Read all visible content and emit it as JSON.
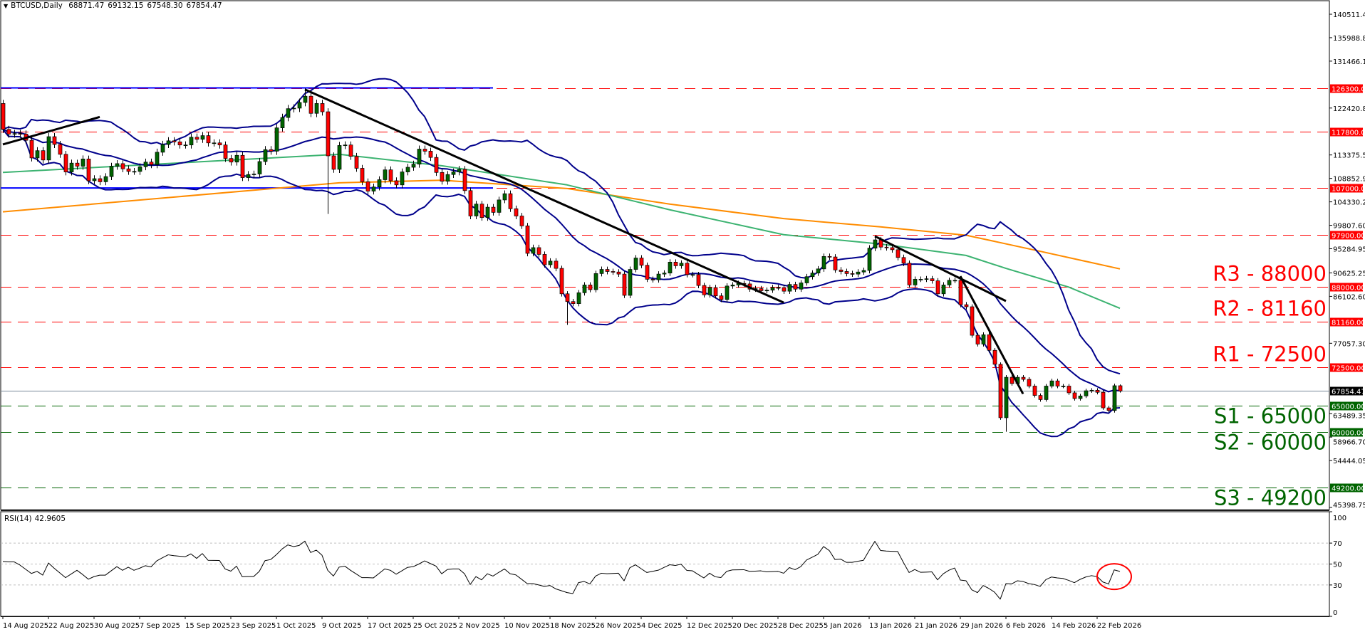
{
  "header": {
    "symbol": "BTCUSD,Daily",
    "open": "68871.47",
    "high": "69132.15",
    "low": "67548.30",
    "close": "67854.47"
  },
  "rsi_panel": {
    "title": "RSI(14)",
    "value": "42.9605",
    "levels": [
      "70",
      "50",
      "30"
    ],
    "scale_labels": [
      "100",
      "70",
      "50",
      "30",
      "0"
    ]
  },
  "colors": {
    "bull": "#006400",
    "bear": "#ff0000",
    "resistance": "#ff0000",
    "support": "#006400",
    "bands": "#00008b",
    "ma_green": "#3cb371",
    "ma_orange": "#ff8c00",
    "range_lines": "#0000ff",
    "trendlines": "#000000",
    "rsi_highlight": "#ff0000"
  },
  "chart_data": {
    "type": "candlestick",
    "title": "BTCUSD,Daily",
    "ylim": [
      44985,
      143256
    ],
    "first_date": "14 Aug 2025",
    "first_open": 123300,
    "close": [
      118300,
      117400,
      117500,
      117400,
      116200,
      112800,
      114200,
      112400,
      116900,
      115400,
      113500,
      110100,
      111800,
      111200,
      112600,
      108400,
      108800,
      108200,
      109200,
      111200,
      111700,
      110700,
      110200,
      110200,
      111100,
      112000,
      111500,
      113900,
      115400,
      116100,
      115900,
      115300,
      115300,
      116800,
      116400,
      117100,
      115700,
      115700,
      115300,
      112700,
      112000,
      113300,
      109000,
      109600,
      109700,
      112100,
      114400,
      114100,
      118600,
      120600,
      122300,
      122400,
      123500,
      124700,
      121400,
      123300,
      121700,
      113200,
      110600,
      115200,
      115300,
      113100,
      110800,
      108200,
      106400,
      107200,
      108600,
      110500,
      108400,
      107600,
      110100,
      111000,
      111600,
      114500,
      114100,
      112900,
      110000,
      108300,
      109600,
      110100,
      110600,
      106500,
      101600,
      103900,
      101300,
      103300,
      102300,
      104700,
      105900,
      103000,
      101600,
      99700,
      94400,
      95500,
      94200,
      92200,
      92900,
      91500,
      86600,
      85100,
      84700,
      86800,
      88300,
      87400,
      90500,
      91300,
      90900,
      90800,
      90400,
      86300,
      91300,
      93500,
      92100,
      89400,
      89300,
      90400,
      90600,
      92700,
      92000,
      92500,
      90300,
      90300,
      88200,
      86400,
      87800,
      86200,
      85500,
      88100,
      88300,
      88600,
      88500,
      87500,
      87600,
      87200,
      87300,
      87800,
      87800,
      87100,
      88400,
      87500,
      88700,
      89900,
      90600,
      91400,
      93800,
      93700,
      91200,
      90900,
      90500,
      90400,
      90800,
      91100,
      95400,
      97000,
      95600,
      95500,
      95100,
      93600,
      92500,
      88300,
      89400,
      89400,
      89500,
      89100,
      86600,
      88300,
      89200,
      89200,
      84500,
      84100,
      78600,
      76900,
      78700,
      75700,
      73000,
      62700,
      70500,
      69300,
      70500,
      70100,
      68800,
      67000,
      66200,
      68800,
      69800,
      68800,
      68800,
      67500,
      66400,
      66900,
      67900,
      68000,
      67600,
      64600,
      64100,
      68871.47,
      67854.47
    ],
    "wick_overrides": {
      "6 Oct 2025": {
        "high": 126200
      },
      "10 Oct 2025": {
        "low": 102000
      },
      "21 Nov 2025": {
        "low": 80600
      },
      "5 Feb 2026": {
        "low": 62300
      },
      "6 Feb 2026": {
        "low": 60000
      },
      "26 Feb 2026": {
        "open": 68871.47,
        "high": 69132.15,
        "low": 67548.3
      }
    },
    "bollinger": {
      "period": 20,
      "deviations": 2
    },
    "ma_green": [
      {
        "date": "14 Aug 2025",
        "value": 110000
      },
      {
        "date": "12 Oct 2025",
        "value": 113500
      },
      {
        "date": "30 Oct 2025",
        "value": 111300
      },
      {
        "date": "21 Nov 2025",
        "value": 107600
      },
      {
        "date": "9 Dec 2025",
        "value": 102800
      },
      {
        "date": "29 Dec 2025",
        "value": 98000
      },
      {
        "date": "15 Jan 2026",
        "value": 96200
      },
      {
        "date": "30 Jan 2026",
        "value": 94000
      },
      {
        "date": "6 Feb 2026",
        "value": 91500
      },
      {
        "date": "17 Feb 2026",
        "value": 87900
      },
      {
        "date": "26 Feb 2026",
        "value": 83800
      }
    ],
    "ma_orange": [
      {
        "date": "14 Aug 2025",
        "value": 102400
      },
      {
        "date": "12 Oct 2025",
        "value": 108000
      },
      {
        "date": "30 Oct 2025",
        "value": 108500
      },
      {
        "date": "21 Nov 2025",
        "value": 106900
      },
      {
        "date": "9 Dec 2025",
        "value": 103900
      },
      {
        "date": "29 Dec 2025",
        "value": 101100
      },
      {
        "date": "15 Jan 2026",
        "value": 99500
      },
      {
        "date": "30 Jan 2026",
        "value": 97900
      },
      {
        "date": "12 Feb 2026",
        "value": 94800
      },
      {
        "date": "26 Feb 2026",
        "value": 91400
      }
    ],
    "trendlines": [
      {
        "from": {
          "date": "14 Aug 2025",
          "value": 115400
        },
        "to": {
          "date": "31 Aug 2025",
          "value": 120700
        }
      },
      {
        "from": {
          "date": "6 Oct 2025",
          "value": 126000
        },
        "to": {
          "date": "29 Dec 2025",
          "value": 84900
        }
      },
      {
        "from": {
          "date": "14 Jan 2026",
          "value": 97700
        },
        "to": {
          "date": "6 Feb 2026",
          "value": 85200
        }
      },
      {
        "from": {
          "date": "29 Jan 2026",
          "value": 90000
        },
        "to": {
          "date": "9 Feb 2026",
          "value": 67300
        }
      }
    ],
    "range_lines": [
      {
        "value": 126300,
        "from": "14 Aug 2025",
        "to": "8 Nov 2025"
      },
      {
        "value": 107000,
        "from": "14 Aug 2025",
        "to": "8 Nov 2025"
      }
    ],
    "levels": [
      {
        "value": 126300,
        "label": "126300.00",
        "kind": "resistance",
        "note": ""
      },
      {
        "value": 117800,
        "label": "117800.00",
        "kind": "resistance",
        "note": ""
      },
      {
        "value": 107000,
        "label": "107000.00",
        "kind": "resistance",
        "note": ""
      },
      {
        "value": 97900,
        "label": "97900.00",
        "kind": "resistance",
        "note": ""
      },
      {
        "value": 88000,
        "label": "88000.00",
        "kind": "resistance",
        "note": "R3 - 88000"
      },
      {
        "value": 81160,
        "label": "81160.00",
        "kind": "resistance",
        "note": "R2 - 81160"
      },
      {
        "value": 72500,
        "label": "72500.00",
        "kind": "resistance",
        "note": "R1 - 72500"
      },
      {
        "value": 65000,
        "label": "65000.00",
        "kind": "support",
        "note": "S1 - 65000"
      },
      {
        "value": 60000,
        "label": "60000.00",
        "kind": "support",
        "note": "S2 - 60000"
      },
      {
        "value": 49200,
        "label": "49200.00",
        "kind": "support",
        "note": "S3 - 49200"
      }
    ],
    "current_price": {
      "value": 67854.47,
      "label": "67854.47"
    },
    "y_ticks": [
      "140511.45",
      "135988.80",
      "131466.15",
      "122420.85",
      "113375.55",
      "108852.90",
      "104330.25",
      "99807.60",
      "95284.95",
      "90625.25",
      "86102.60",
      "77057.30",
      "63489.35",
      "58966.70",
      "54444.05",
      "45398.75"
    ],
    "x_ticks": [
      "14 Aug 2025",
      "22 Aug 2025",
      "30 Aug 2025",
      "7 Sep 2025",
      "15 Sep 2025",
      "23 Sep 2025",
      "1 Oct 2025",
      "9 Oct 2025",
      "17 Oct 2025",
      "25 Oct 2025",
      "2 Nov 2025",
      "10 Nov 2025",
      "18 Nov 2025",
      "26 Nov 2025",
      "4 Dec 2025",
      "12 Dec 2025",
      "20 Dec 2025",
      "28 Dec 2025",
      "5 Jan 2026",
      "13 Jan 2026",
      "21 Jan 2026",
      "29 Jan 2026",
      "6 Feb 2026",
      "14 Feb 2026",
      "22 Feb 2026"
    ],
    "rsi": [
      52.5,
      52,
      52,
      49,
      45,
      41,
      43,
      39.4,
      51,
      46,
      41.5,
      37,
      40.5,
      44,
      40,
      35.5,
      38,
      39.4,
      39.4,
      43.5,
      47.5,
      44,
      47,
      44,
      46,
      48.4,
      47.3,
      53,
      56,
      58.8,
      58,
      57.5,
      57,
      59.7,
      55.4,
      60,
      53.6,
      53.5,
      53.4,
      45.3,
      43.2,
      48,
      37.8,
      38,
      38,
      43,
      53.2,
      54.3,
      59,
      64.4,
      68.3,
      66.7,
      67.8,
      71.9,
      61,
      63.3,
      58.4,
      44,
      38.5,
      47,
      48,
      44,
      40.5,
      37,
      37,
      36.7,
      41,
      45.3,
      44,
      40.3,
      43.5,
      46.8,
      47.5,
      50,
      53,
      50.5,
      48,
      40.7,
      44.8,
      45.3,
      45.3,
      40.7,
      30.4,
      38,
      34.9,
      40.7,
      38.5,
      42,
      45.3,
      40.7,
      39.6,
      35.5,
      31.3,
      31.3,
      30,
      28.6,
      29.5,
      26.3,
      24.5,
      22.7,
      21.8,
      32.2,
      33.3,
      31,
      38.5,
      41.2,
      40.7,
      41,
      41.2,
      34,
      46.4,
      49.3,
      45.5,
      41.9,
      43,
      44.1,
      46.7,
      49.3,
      48.6,
      49.8,
      43.9,
      43.5,
      40,
      36.7,
      41.2,
      37.8,
      37.1,
      43,
      44.4,
      44.5,
      44.6,
      43,
      43.2,
      43.5,
      42.5,
      42.8,
      43,
      41.2,
      46.6,
      44.6,
      47.5,
      53.8,
      56.5,
      59.3,
      66.7,
      62.9,
      54.3,
      54.7,
      51.6,
      51.6,
      52.6,
      53.6,
      62.9,
      71.7,
      62.9,
      62.4,
      62.2,
      62,
      51.6,
      41.9,
      44.8,
      42.1,
      42.3,
      42.5,
      34.9,
      40.7,
      44.1,
      46.2,
      34.7,
      34,
      25.4,
      22.7,
      29.5,
      26.7,
      23.1,
      16.4,
      31.3,
      31,
      34,
      33.3,
      31.3,
      30.4,
      28.6,
      35.1,
      37.6,
      36.7,
      36.2,
      34.4,
      32.2,
      35.3,
      37.6,
      38.9,
      38,
      32.8,
      31,
      44.4,
      42.96
    ],
    "rsi_ylim": [
      0,
      100
    ],
    "rsi_highlight": {
      "from": "24 Feb 2026",
      "to": "26 Feb 2026"
    }
  }
}
